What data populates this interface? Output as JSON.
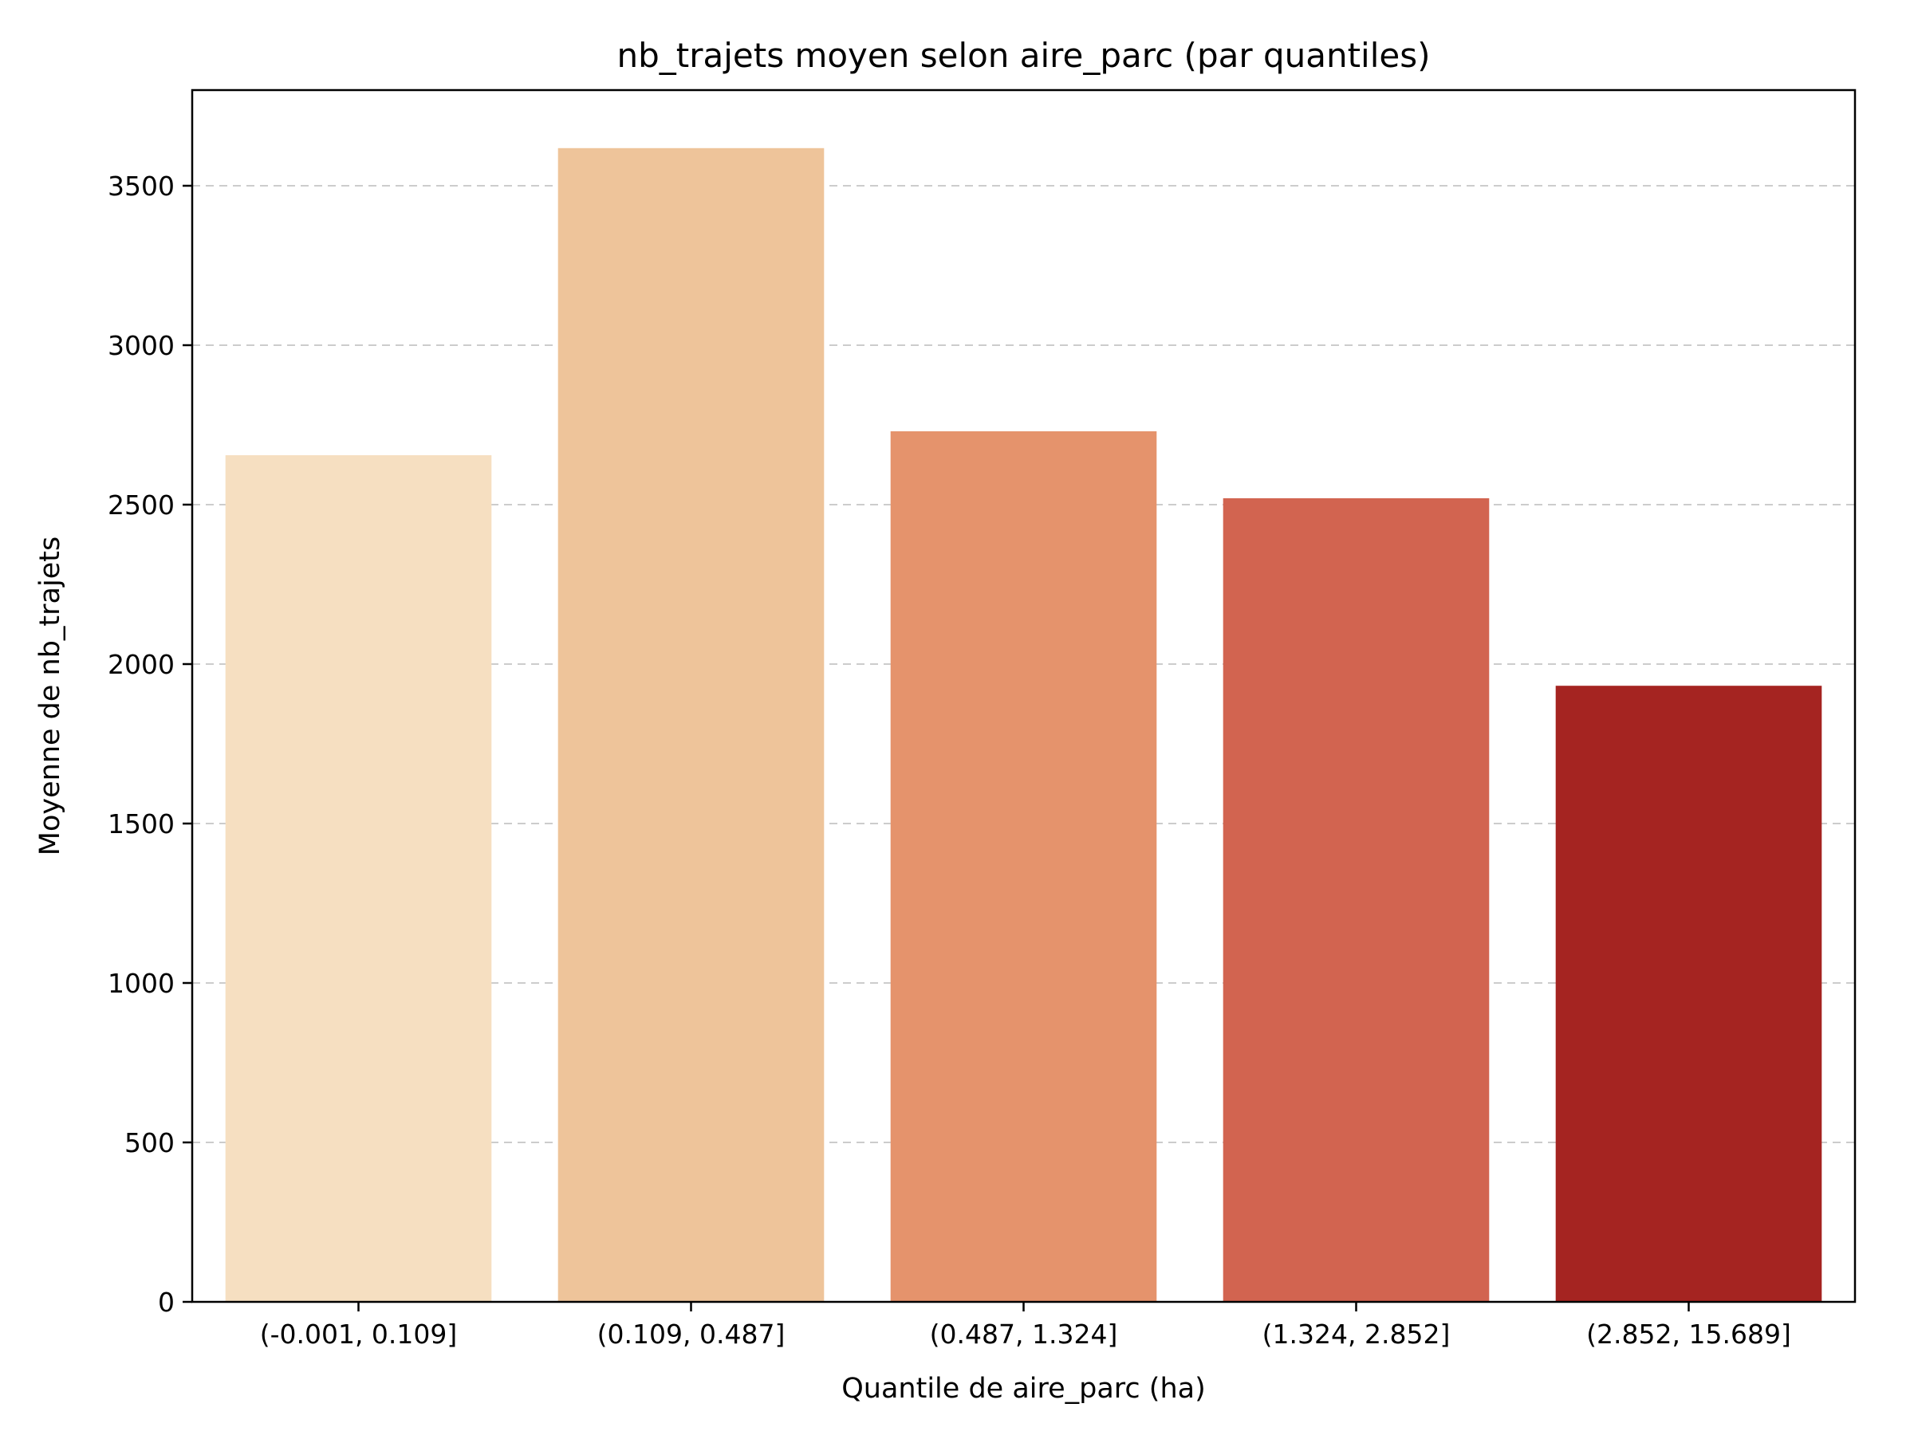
{
  "chart_data": {
    "type": "bar",
    "title": "nb_trajets moyen selon aire_parc (par quantiles)",
    "xlabel": "Quantile de aire_parc (ha)",
    "ylabel": "Moyenne de nb_trajets",
    "categories": [
      "(-0.001, 0.109]",
      "(0.109, 0.487]",
      "(0.487, 1.324]",
      "(1.324, 2.852]",
      "(2.852, 15.689]"
    ],
    "values": [
      2655,
      3618,
      2730,
      2520,
      1932
    ],
    "ylim": [
      0,
      3800
    ],
    "yticks": [
      0,
      500,
      1000,
      1500,
      2000,
      2500,
      3000,
      3500
    ],
    "grid": "y-dashed",
    "colors": [
      "#f6dfc1",
      "#eec49a",
      "#e5936c",
      "#d26450",
      "#a52421"
    ],
    "grid_color": "#cccccc"
  }
}
